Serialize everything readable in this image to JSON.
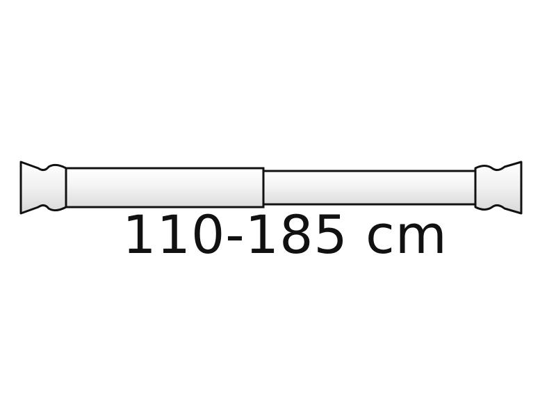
{
  "product": {
    "size_range_label": "110-185 cm"
  },
  "colors": {
    "outline": "#111111",
    "fill": "#ffffff",
    "shade": "#e4e4e4"
  }
}
